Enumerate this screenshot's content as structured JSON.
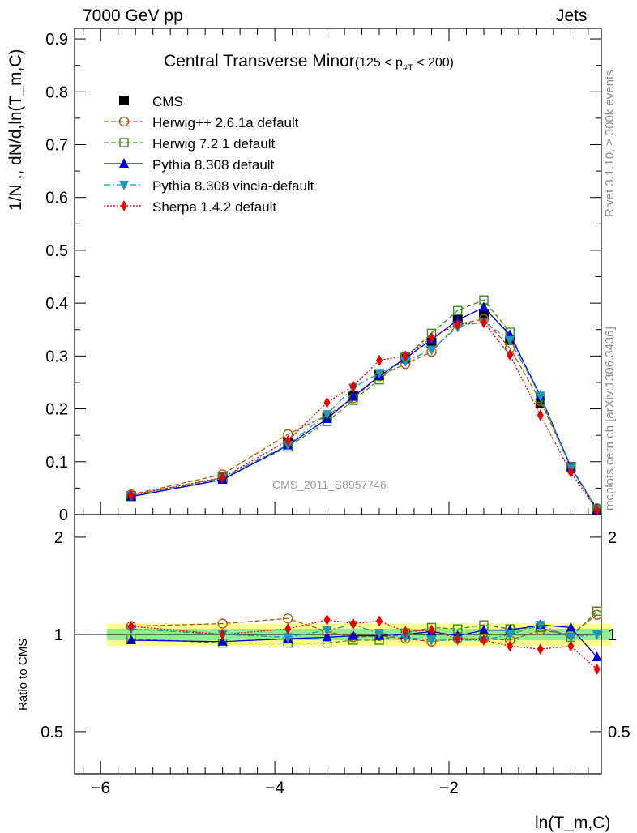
{
  "header": {
    "energy": "7000 GeV pp",
    "process": "Jets",
    "title": "Central Transverse Minor",
    "title_cut": "(125 < p",
    "title_cut_sub": "#T",
    "title_cut_end": " < 200)",
    "watermark": "CMS_2011_S8957746",
    "rivet_info": "Rivet 3.1.10, ≥ 300k events",
    "mcplots_info": "mcplots.cern.ch [arXiv:1306.3436]"
  },
  "colors": {
    "CMS": "#000000",
    "Herwig++": "#b35a00",
    "Herwig7": "#3c8c1e",
    "Pythia": "#0000cc",
    "Vincia": "#1e96b4",
    "Sherpa": "#e60000",
    "band_inner": "#90ee90",
    "band_outer": "#ffff90"
  },
  "chart_data": [
    {
      "type": "line",
      "panel": "main",
      "ylabel": "1/N ,, dN/d,ln(T_m,C)",
      "ylim": [
        0,
        0.92
      ],
      "xlim": [
        -6.3,
        -0.25
      ],
      "yticks": [
        0,
        0.1,
        0.2,
        0.3,
        0.4,
        0.5,
        0.6,
        0.7,
        0.8,
        0.9
      ],
      "ytick_labels": [
        "0",
        "0.1",
        "0.2",
        "0.3",
        "0.4",
        "0.5",
        "0.6",
        "0.7",
        "0.8",
        "0.9"
      ],
      "legend_position": "top-left",
      "x": [
        -5.65,
        -4.6,
        -3.85,
        -3.4,
        -3.1,
        -2.8,
        -2.5,
        -2.2,
        -1.9,
        -1.6,
        -1.3,
        -0.95,
        -0.6,
        -0.3
      ],
      "series": [
        {
          "name": "CMS",
          "marker": "square",
          "values": [
            0.035,
            0.07,
            0.135,
            0.185,
            0.225,
            0.265,
            0.295,
            0.325,
            0.37,
            0.38,
            0.33,
            0.21,
            0.09,
            0.01
          ]
        },
        {
          "name": "Herwig++ 2.6.1a default",
          "marker": "circle-open",
          "dash": "6,3",
          "values": [
            0.038,
            0.076,
            0.152,
            0.188,
            0.22,
            0.262,
            0.285,
            0.308,
            0.36,
            0.37,
            0.315,
            0.215,
            0.09,
            0.012
          ]
        },
        {
          "name": "Herwig 7.2.1 default",
          "marker": "square-open",
          "dash": "6,3",
          "values": [
            0.034,
            0.068,
            0.128,
            0.176,
            0.216,
            0.255,
            0.298,
            0.343,
            0.386,
            0.406,
            0.345,
            0.22,
            0.089,
            0.01
          ]
        },
        {
          "name": "Pythia 8.308 default",
          "marker": "triangle-up",
          "dash": "",
          "values": [
            0.034,
            0.066,
            0.131,
            0.181,
            0.223,
            0.262,
            0.296,
            0.331,
            0.368,
            0.392,
            0.34,
            0.225,
            0.09,
            0.009
          ]
        },
        {
          "name": "Pythia 8.308 vincia-default",
          "marker": "triangle-down",
          "dash": "8,3,2,3",
          "values": [
            0.036,
            0.07,
            0.132,
            0.19,
            0.24,
            0.268,
            0.29,
            0.312,
            0.355,
            0.365,
            0.33,
            0.225,
            0.088,
            0.01
          ]
        },
        {
          "name": "Sherpa 1.4.2 default",
          "marker": "diamond",
          "dash": "2,2",
          "values": [
            0.037,
            0.07,
            0.14,
            0.212,
            0.243,
            0.292,
            0.3,
            0.335,
            0.36,
            0.363,
            0.302,
            0.188,
            0.08,
            0.008
          ]
        }
      ]
    },
    {
      "type": "line",
      "panel": "ratio",
      "xlabel": "ln(T_m,C)",
      "ylabel": "Ratio to CMS",
      "xticks": [
        -6,
        -4,
        -2
      ],
      "xtick_labels": [
        "−6",
        "−4",
        "−2"
      ],
      "yticks": [
        0.5,
        1,
        2
      ],
      "ytick_labels": [
        "0.5",
        "1",
        "2"
      ],
      "y_scale": "log",
      "ylim": [
        0.37,
        2.35
      ],
      "x": [
        -5.65,
        -4.6,
        -3.85,
        -3.4,
        -3.1,
        -2.8,
        -2.5,
        -2.2,
        -1.9,
        -1.6,
        -1.3,
        -0.95,
        -0.6,
        -0.3
      ],
      "bands": {
        "inner": [
          0.96,
          1.04
        ],
        "outer": [
          0.92,
          1.08
        ]
      },
      "series": [
        {
          "name": "Herwig++ 2.6.1a default",
          "values": [
            1.06,
            1.08,
            1.12,
            1.02,
            0.98,
            0.99,
            0.97,
            0.95,
            0.97,
            0.97,
            0.96,
            1.03,
            1.0,
            1.15
          ]
        },
        {
          "name": "Herwig 7.2.1 default",
          "values": [
            0.97,
            0.94,
            0.94,
            0.94,
            0.96,
            0.96,
            1.01,
            1.05,
            1.04,
            1.07,
            1.04,
            1.05,
            0.98,
            1.18
          ]
        },
        {
          "name": "Pythia 8.308 default",
          "values": [
            0.96,
            0.95,
            0.97,
            0.98,
            0.99,
            0.99,
            1.0,
            1.02,
            0.99,
            1.03,
            1.03,
            1.07,
            1.05,
            0.85
          ]
        },
        {
          "name": "Pythia 8.308 vincia-default",
          "values": [
            1.04,
            1.0,
            0.98,
            1.03,
            1.07,
            1.01,
            0.98,
            0.96,
            0.96,
            0.96,
            1.0,
            1.07,
            0.98,
            1.0
          ]
        },
        {
          "name": "Sherpa 1.4.2 default",
          "values": [
            1.06,
            1.0,
            1.04,
            1.11,
            1.08,
            1.1,
            1.02,
            1.03,
            0.97,
            0.96,
            0.92,
            0.9,
            0.92,
            0.78
          ]
        }
      ]
    }
  ]
}
